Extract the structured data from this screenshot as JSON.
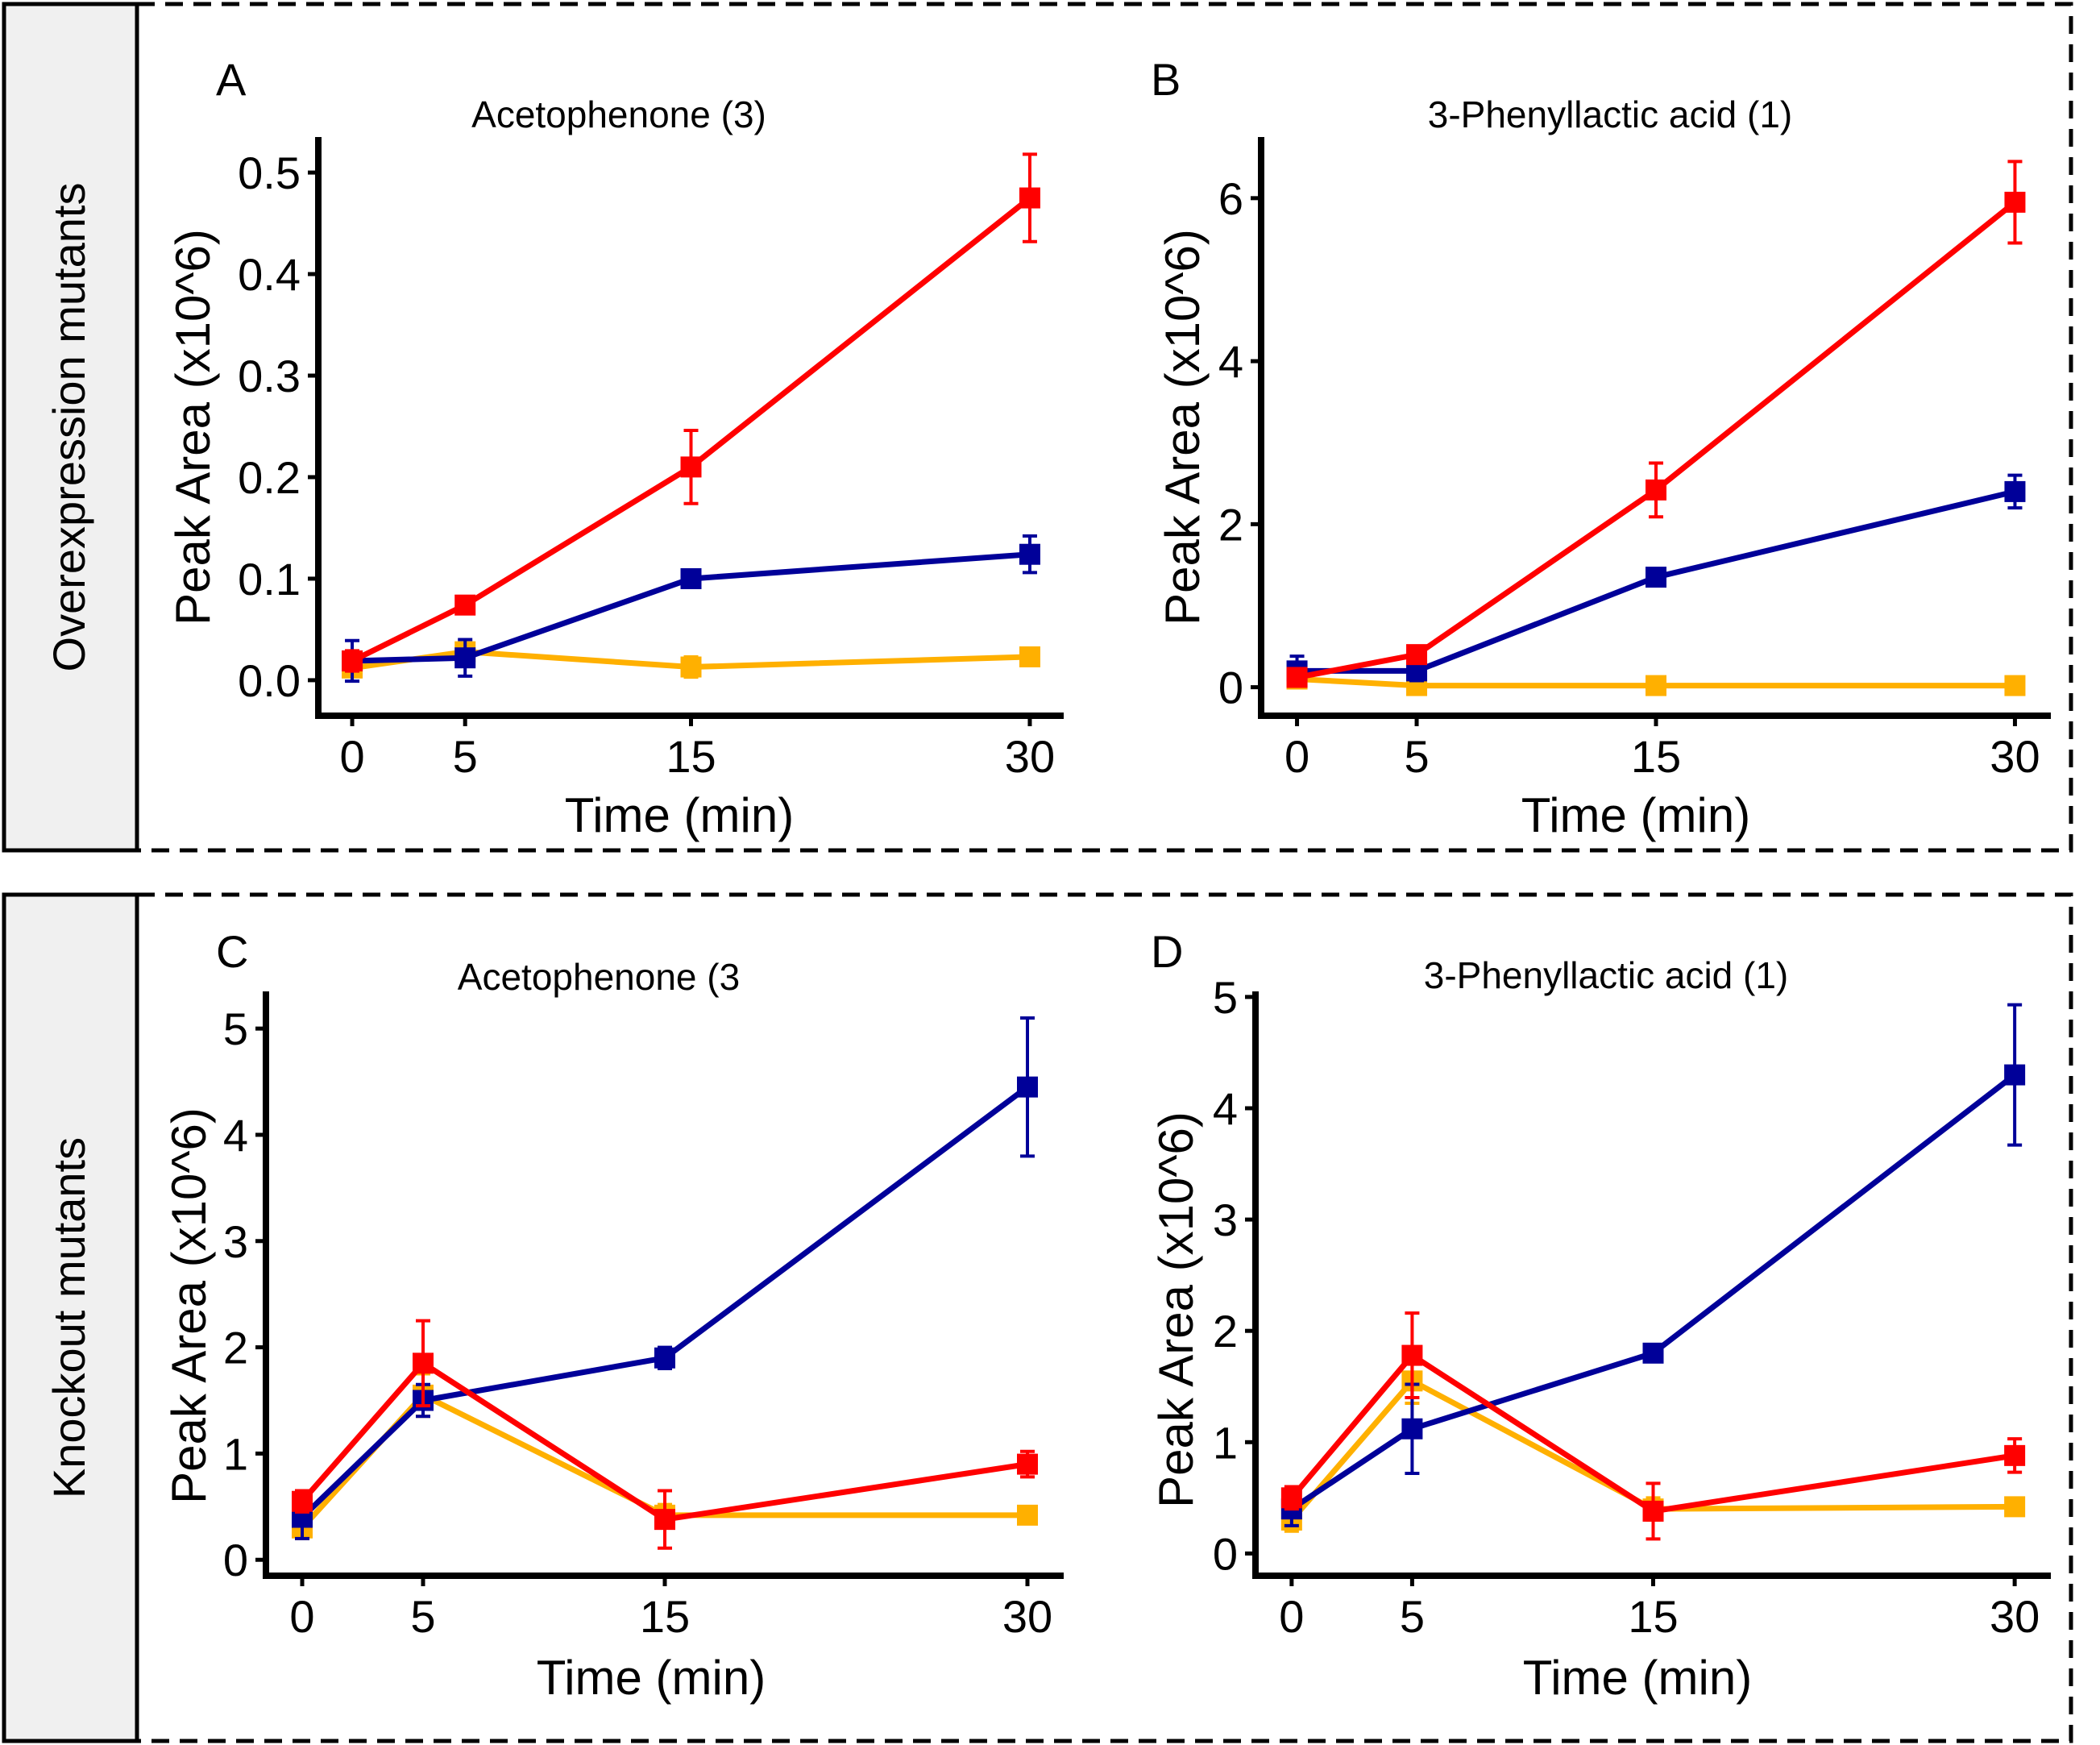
{
  "colors": {
    "red": "#ff0000",
    "blue": "#000099",
    "orange": "#ffb000"
  },
  "rows": [
    {
      "label": "Overexpression mutants"
    },
    {
      "label": "Knockout mutants"
    }
  ],
  "chart_data": [
    {
      "type": "line",
      "panel": "A",
      "title": "Acetophenone (3)",
      "xlabel": "Time (min)",
      "ylabel": "Peak Area (x10^6)",
      "x": [
        0,
        5,
        15,
        30
      ],
      "x_tick_labels": [
        "0",
        "5",
        "15",
        "30"
      ],
      "xlim": [
        -1.5,
        31.5
      ],
      "ylim": [
        -0.035,
        0.535
      ],
      "y_ticks": [
        0.0,
        0.1,
        0.2,
        0.3,
        0.4,
        0.5
      ],
      "y_tick_labels": [
        "0.0",
        "0.1",
        "0.2",
        "0.3",
        "0.4",
        "0.5"
      ],
      "series": [
        {
          "color": "orange",
          "values": [
            0.012,
            0.028,
            0.013,
            0.023
          ],
          "errors": [
            0.006,
            0.006,
            0.01,
            0.005
          ]
        },
        {
          "color": "blue",
          "values": [
            0.019,
            0.022,
            0.1,
            0.124
          ],
          "errors": [
            0.02,
            0.018,
            0.008,
            0.018
          ]
        },
        {
          "color": "red",
          "values": [
            0.019,
            0.074,
            0.21,
            0.475
          ],
          "errors": [
            0.01,
            0.008,
            0.036,
            0.043
          ]
        }
      ]
    },
    {
      "type": "line",
      "panel": "B",
      "title": "3-Phenyllactic acid (1)",
      "xlabel": "Time (min)",
      "ylabel": "Peak Area (x10^6)",
      "x": [
        0,
        5,
        15,
        30
      ],
      "x_tick_labels": [
        "0",
        "5",
        "15",
        "30"
      ],
      "xlim": [
        -1.5,
        31.5
      ],
      "ylim": [
        -0.35,
        6.75
      ],
      "y_ticks": [
        0,
        2,
        4,
        6
      ],
      "y_tick_labels": [
        "0",
        "2",
        "4",
        "6"
      ],
      "series": [
        {
          "color": "orange",
          "values": [
            0.1,
            0.02,
            0.02,
            0.02
          ],
          "errors": [
            0.08,
            0.06,
            0.05,
            0.05
          ]
        },
        {
          "color": "blue",
          "values": [
            0.2,
            0.2,
            1.35,
            2.4
          ],
          "errors": [
            0.18,
            0.12,
            0.1,
            0.2
          ]
        },
        {
          "color": "red",
          "values": [
            0.12,
            0.4,
            2.42,
            5.95
          ],
          "errors": [
            0.1,
            0.1,
            0.33,
            0.5
          ]
        }
      ]
    },
    {
      "type": "line",
      "panel": "C",
      "title": "Acetophenone (3",
      "xlabel": "Time (min)",
      "ylabel": "Peak Area (x10^6)",
      "x": [
        0,
        5,
        15,
        30
      ],
      "x_tick_labels": [
        "0",
        "5",
        "15",
        "30"
      ],
      "xlim": [
        -1.5,
        31.5
      ],
      "ylim": [
        -0.15,
        5.35
      ],
      "y_ticks": [
        0,
        1,
        2,
        3,
        4,
        5
      ],
      "y_tick_labels": [
        "0",
        "1",
        "2",
        "3",
        "4",
        "5"
      ],
      "series": [
        {
          "color": "orange",
          "values": [
            0.3,
            1.55,
            0.42,
            0.42
          ],
          "errors": [
            0.1,
            0.2,
            0.1,
            0.05
          ]
        },
        {
          "color": "blue",
          "values": [
            0.4,
            1.5,
            1.9,
            4.45
          ],
          "errors": [
            0.2,
            0.15,
            0.1,
            0.65
          ]
        },
        {
          "color": "red",
          "values": [
            0.55,
            1.85,
            0.38,
            0.9
          ],
          "errors": [
            0.1,
            0.4,
            0.27,
            0.12
          ]
        }
      ]
    },
    {
      "type": "line",
      "panel": "D",
      "title": "3-Phenyllactic acid (1)",
      "xlabel": "Time (min)",
      "ylabel": "Peak Area (x10^6)",
      "x": [
        0,
        5,
        15,
        30
      ],
      "x_tick_labels": [
        "0",
        "5",
        "15",
        "30"
      ],
      "xlim": [
        -1.5,
        31.5
      ],
      "ylim": [
        -0.2,
        5.05
      ],
      "y_ticks": [
        0,
        1,
        2,
        3,
        4,
        5
      ],
      "y_tick_labels": [
        "0",
        "1",
        "2",
        "3",
        "4",
        "5"
      ],
      "series": [
        {
          "color": "orange",
          "values": [
            0.3,
            1.55,
            0.4,
            0.42
          ],
          "errors": [
            0.1,
            0.2,
            0.1,
            0.05
          ]
        },
        {
          "color": "blue",
          "values": [
            0.4,
            1.12,
            1.8,
            4.3
          ],
          "errors": [
            0.15,
            0.4,
            0.05,
            0.63
          ]
        },
        {
          "color": "red",
          "values": [
            0.5,
            1.78,
            0.38,
            0.88
          ],
          "errors": [
            0.1,
            0.38,
            0.25,
            0.15
          ]
        }
      ]
    }
  ]
}
